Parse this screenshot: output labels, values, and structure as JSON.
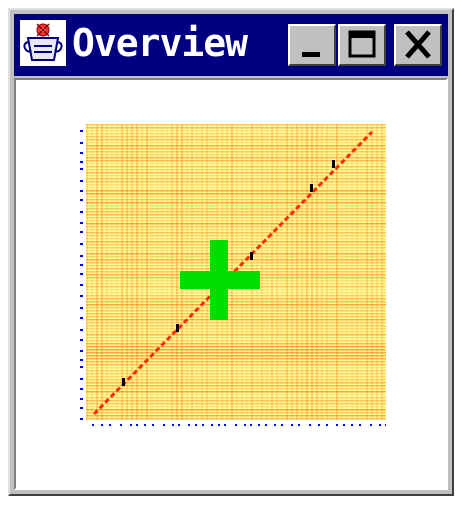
{
  "window": {
    "title": "Overview",
    "app_icon": "gear-cup-icon",
    "buttons": {
      "minimize": "minimize-icon",
      "maximize": "maximize-icon",
      "close": "close-icon"
    }
  },
  "overview_map": {
    "marker": "crosshair-plus-icon",
    "colors": {
      "background": "#ffff9a",
      "stripe": "#ff6a00",
      "diagonal": "#ff2a00",
      "marker": "#00e000",
      "axis_dots": "#0000ff"
    }
  }
}
